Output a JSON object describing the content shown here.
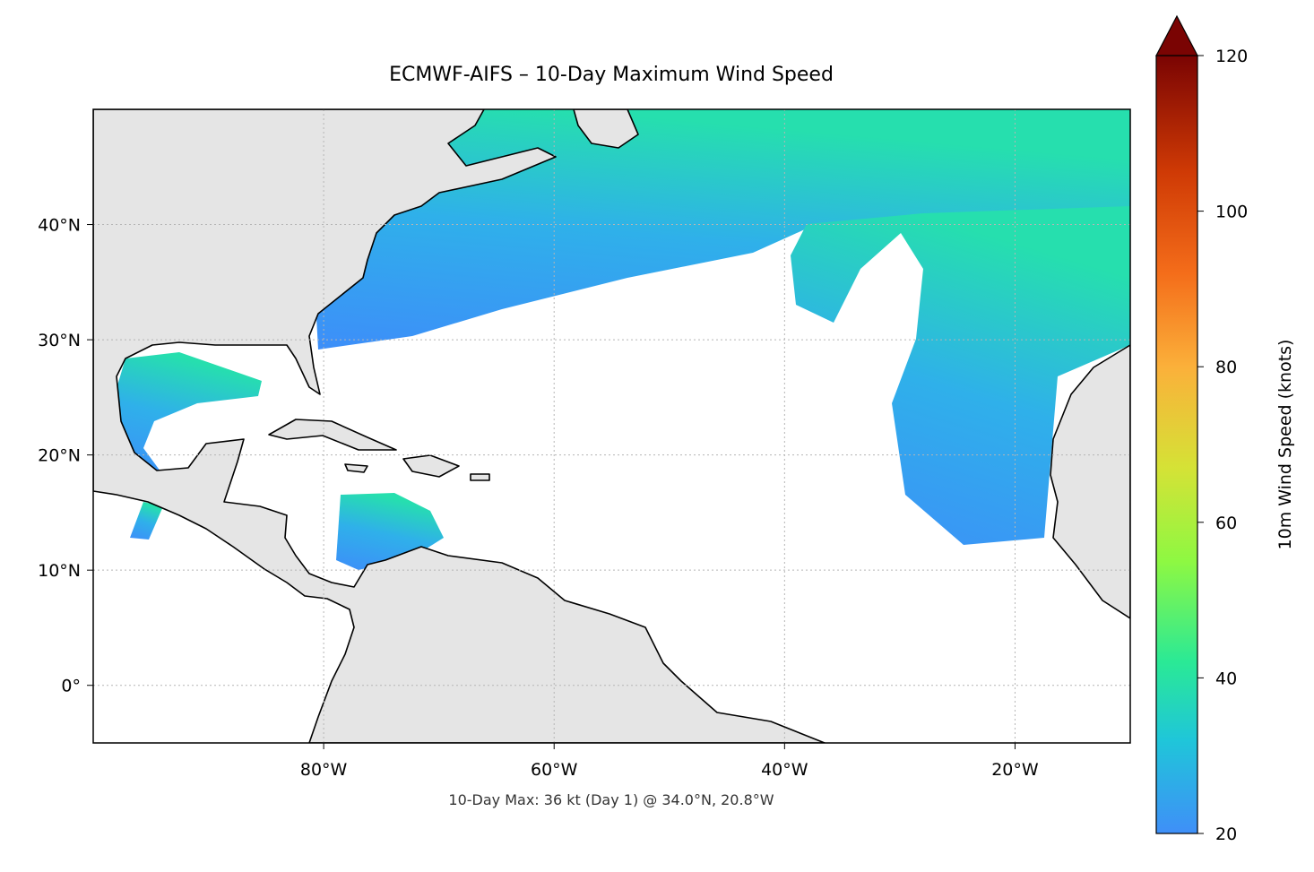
{
  "title": "ECMWF-AIFS – 10-Day Maximum Wind Speed",
  "map": {
    "lonlim": [
      -100,
      -10
    ],
    "latlim": [
      -5,
      50
    ],
    "lonticks": [
      {
        "value": -80,
        "label": "80°W"
      },
      {
        "value": -60,
        "label": "60°W"
      },
      {
        "value": -40,
        "label": "40°W"
      },
      {
        "value": -20,
        "label": "20°W"
      }
    ],
    "latticks": [
      {
        "value": 0,
        "label": "0°"
      },
      {
        "value": 10,
        "label": "10°N"
      },
      {
        "value": 20,
        "label": "20°N"
      },
      {
        "value": 30,
        "label": "30°N"
      },
      {
        "value": 40,
        "label": "40°N"
      }
    ],
    "grid": true
  },
  "colorbar": {
    "label": "10m Wind Speed (knots)",
    "lim": [
      20,
      120
    ],
    "ticks": [
      20,
      40,
      60,
      80,
      100,
      120
    ],
    "extend": "max"
  },
  "footer": "10-Day Max: 36 kt (Day 1) @ 34.0°N, 20.8°W"
}
